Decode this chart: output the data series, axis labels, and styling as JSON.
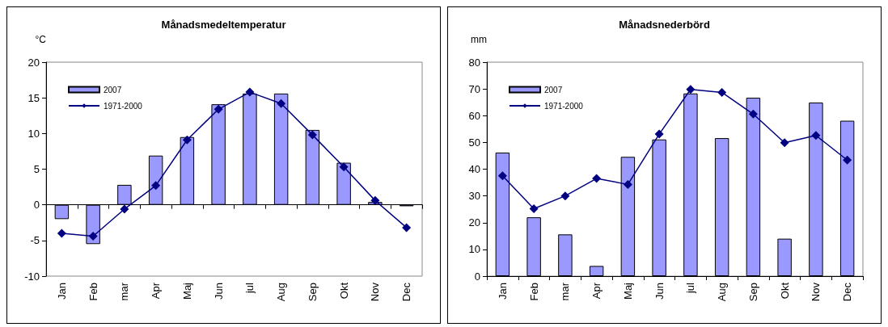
{
  "chart_data": [
    {
      "type": "bar",
      "title": "Månadsmedeltemperatur",
      "ylabel": "°C",
      "categories": [
        "Jan",
        "Feb",
        "mar",
        "Apr",
        "Maj",
        "Jun",
        "jul",
        "Aug",
        "Sep",
        "Okt",
        "Nov",
        "Dec"
      ],
      "ylim": [
        -10,
        20
      ],
      "yticks": [
        -10,
        -5,
        0,
        5,
        10,
        15,
        20
      ],
      "legend": "top left",
      "marker": "diamond",
      "series": [
        {
          "name": "2007",
          "color": "#9999ff",
          "values": [
            -2.0,
            -5.5,
            2.8,
            6.9,
            9.5,
            14.1,
            15.6,
            15.6,
            10.5,
            5.9,
            0.4,
            -0.2
          ]
        },
        {
          "name": "1971-2000",
          "type": "line",
          "color": "#000080",
          "values": [
            -4.0,
            -4.4,
            -0.6,
            2.7,
            9.1,
            13.4,
            15.8,
            14.2,
            9.8,
            5.3,
            0.6,
            -3.2
          ]
        }
      ]
    },
    {
      "type": "bar",
      "title": "Månadsnederbörd",
      "ylabel": "mm",
      "categories": [
        "Jan",
        "Feb",
        "mar",
        "Apr",
        "Maj",
        "Jun",
        "jul",
        "Aug",
        "Sep",
        "Okt",
        "Nov",
        "Dec"
      ],
      "ylim": [
        0,
        80
      ],
      "yticks": [
        0,
        10,
        20,
        30,
        40,
        50,
        60,
        70,
        80
      ],
      "legend": "top left",
      "marker": "diamond",
      "series": [
        {
          "name": "2007",
          "color": "#9999ff",
          "values": [
            46.2,
            22.0,
            15.6,
            3.8,
            44.6,
            51.1,
            68.3,
            51.6,
            66.7,
            14.0,
            64.9,
            58.1
          ]
        },
        {
          "name": "1971-2000",
          "type": "line",
          "color": "#000080",
          "values": [
            37.5,
            25.2,
            30.0,
            36.5,
            34.3,
            53.1,
            69.8,
            68.7,
            60.6,
            49.9,
            52.6,
            43.4
          ]
        }
      ]
    }
  ]
}
